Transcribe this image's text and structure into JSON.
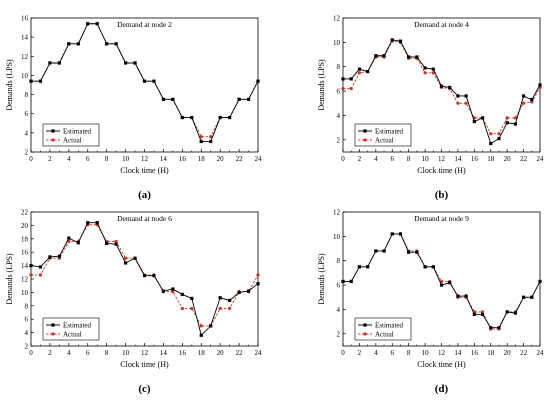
{
  "colors": {
    "estimated": "#000000",
    "actual": "#c0392b",
    "axis": "#000000",
    "background": "#ffffff"
  },
  "chart_data": [
    {
      "type": "line",
      "title": "Demand at node 2",
      "xlabel": "Clock time (H)",
      "ylabel": "Demands (LPS)",
      "panel_label": "(a)",
      "xlim": [
        0,
        24
      ],
      "ylim": [
        2,
        16
      ],
      "xticks": [
        0,
        2,
        4,
        6,
        8,
        10,
        12,
        14,
        16,
        18,
        20,
        22,
        24
      ],
      "yticks": [
        2,
        4,
        6,
        8,
        10,
        12,
        14,
        16
      ],
      "legend_position": "bottom-left",
      "x": [
        0,
        1,
        2,
        3,
        4,
        5,
        6,
        7,
        8,
        9,
        10,
        11,
        12,
        13,
        14,
        15,
        16,
        17,
        18,
        19,
        20,
        21,
        22,
        23,
        24
      ],
      "series": [
        {
          "name": "Estimated",
          "marker": "square",
          "color": "#000000",
          "dashed": false,
          "values": [
            9.4,
            9.4,
            11.3,
            11.3,
            13.3,
            13.3,
            15.4,
            15.4,
            13.3,
            13.3,
            11.3,
            11.3,
            9.4,
            9.4,
            7.5,
            7.5,
            5.6,
            5.6,
            3.1,
            3.1,
            5.6,
            5.6,
            7.5,
            7.5,
            9.4
          ]
        },
        {
          "name": "Actual",
          "marker": "circle",
          "color": "#c0392b",
          "dashed": true,
          "values": [
            9.4,
            9.4,
            11.3,
            11.3,
            13.3,
            13.3,
            15.4,
            15.4,
            13.3,
            13.3,
            11.3,
            11.3,
            9.4,
            9.4,
            7.5,
            7.5,
            5.6,
            5.6,
            3.6,
            3.6,
            5.6,
            5.6,
            7.5,
            7.5,
            9.4
          ]
        }
      ]
    },
    {
      "type": "line",
      "title": "Demand at node 4",
      "xlabel": "Clock time (H)",
      "ylabel": "Demands (LPS)",
      "panel_label": "(b)",
      "xlim": [
        0,
        24
      ],
      "ylim": [
        1,
        12
      ],
      "xticks": [
        0,
        2,
        4,
        6,
        8,
        10,
        12,
        14,
        16,
        18,
        20,
        22,
        24
      ],
      "yticks": [
        2,
        4,
        6,
        8,
        10,
        12
      ],
      "legend_position": "bottom-left",
      "x": [
        0,
        1,
        2,
        3,
        4,
        5,
        6,
        7,
        8,
        9,
        10,
        11,
        12,
        13,
        14,
        15,
        16,
        17,
        18,
        19,
        20,
        21,
        22,
        23,
        24
      ],
      "series": [
        {
          "name": "Estimated",
          "marker": "square",
          "color": "#000000",
          "dashed": false,
          "values": [
            7.0,
            7.0,
            7.8,
            7.6,
            8.9,
            8.9,
            10.2,
            10.1,
            8.8,
            8.8,
            7.9,
            7.8,
            6.4,
            6.3,
            5.6,
            5.6,
            3.5,
            3.8,
            1.7,
            2.1,
            3.4,
            3.3,
            5.6,
            5.3,
            6.5
          ]
        },
        {
          "name": "Actual",
          "marker": "circle",
          "color": "#c0392b",
          "dashed": true,
          "values": [
            6.2,
            6.2,
            7.5,
            7.6,
            8.8,
            8.8,
            10.1,
            10.0,
            8.7,
            8.7,
            7.5,
            7.5,
            6.3,
            6.2,
            5.0,
            5.0,
            3.8,
            3.8,
            2.5,
            2.5,
            3.8,
            3.8,
            5.0,
            5.1,
            6.3
          ]
        }
      ]
    },
    {
      "type": "line",
      "title": "Demand at node 6",
      "xlabel": "Clock time (H)",
      "ylabel": "Demands (LPS)",
      "panel_label": "(c)",
      "xlim": [
        0,
        24
      ],
      "ylim": [
        2,
        22
      ],
      "xticks": [
        0,
        2,
        4,
        6,
        8,
        10,
        12,
        14,
        16,
        18,
        20,
        22,
        24
      ],
      "yticks": [
        2,
        4,
        6,
        8,
        10,
        12,
        14,
        16,
        18,
        20,
        22
      ],
      "legend_position": "bottom-left",
      "x": [
        0,
        1,
        2,
        3,
        4,
        5,
        6,
        7,
        8,
        9,
        10,
        11,
        12,
        13,
        14,
        15,
        16,
        17,
        18,
        19,
        20,
        21,
        22,
        23,
        24
      ],
      "series": [
        {
          "name": "Estimated",
          "marker": "square",
          "color": "#000000",
          "dashed": false,
          "values": [
            14.0,
            13.8,
            15.3,
            15.4,
            18.1,
            17.4,
            20.4,
            20.4,
            17.3,
            17.2,
            14.4,
            15.1,
            12.5,
            12.5,
            10.2,
            10.5,
            9.7,
            9.1,
            3.6,
            5.0,
            9.2,
            8.8,
            10.0,
            10.2,
            11.3
          ]
        },
        {
          "name": "Actual",
          "marker": "circle",
          "color": "#c0392b",
          "dashed": true,
          "values": [
            12.6,
            12.6,
            15.1,
            15.1,
            17.6,
            17.6,
            20.1,
            20.1,
            17.6,
            17.6,
            15.1,
            15.1,
            12.6,
            12.6,
            10.1,
            10.1,
            7.6,
            7.6,
            5.0,
            5.0,
            7.6,
            7.6,
            10.1,
            10.1,
            12.6
          ]
        }
      ]
    },
    {
      "type": "line",
      "title": "Demand at node 9",
      "xlabel": "Clock time (H)",
      "ylabel": "Demands (LPS)",
      "panel_label": "(d)",
      "xlim": [
        0,
        24
      ],
      "ylim": [
        1,
        12
      ],
      "xticks": [
        0,
        2,
        4,
        6,
        8,
        10,
        12,
        14,
        16,
        18,
        20,
        22,
        24
      ],
      "yticks": [
        2,
        4,
        6,
        8,
        10,
        12
      ],
      "legend_position": "bottom-left",
      "x": [
        0,
        1,
        2,
        3,
        4,
        5,
        6,
        7,
        8,
        9,
        10,
        11,
        12,
        13,
        14,
        15,
        16,
        17,
        18,
        19,
        20,
        21,
        22,
        23,
        24
      ],
      "series": [
        {
          "name": "Estimated",
          "marker": "square",
          "color": "#000000",
          "dashed": false,
          "values": [
            6.3,
            6.3,
            7.5,
            7.5,
            8.8,
            8.8,
            10.2,
            10.2,
            8.7,
            8.7,
            7.5,
            7.5,
            6.0,
            6.2,
            5.1,
            5.1,
            3.6,
            3.6,
            2.5,
            2.5,
            3.8,
            3.7,
            5.0,
            5.0,
            6.3
          ]
        },
        {
          "name": "Actual",
          "marker": "circle",
          "color": "#c0392b",
          "dashed": true,
          "values": [
            6.3,
            6.3,
            7.5,
            7.5,
            8.8,
            8.8,
            10.2,
            10.2,
            8.8,
            8.8,
            7.5,
            7.5,
            6.3,
            6.3,
            5.0,
            5.0,
            3.8,
            3.8,
            2.4,
            2.4,
            3.8,
            3.8,
            5.0,
            5.0,
            6.3
          ]
        }
      ]
    }
  ]
}
